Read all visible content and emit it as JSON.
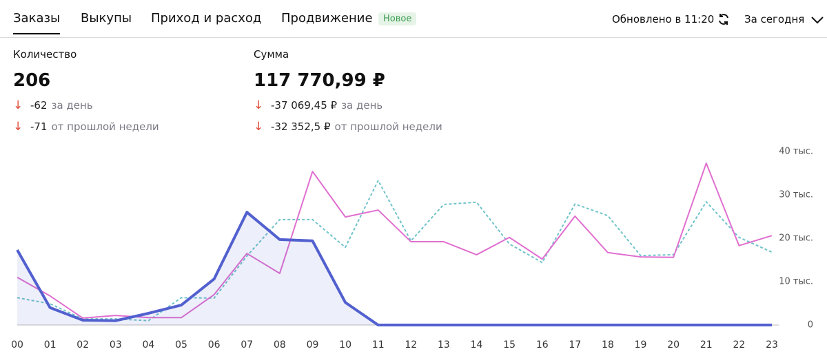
{
  "tabs": [
    "Заказы",
    "Выкупы",
    "Приход и расход",
    "Продвижение"
  ],
  "badge": "Новое",
  "updated": "Обновлено в 11:20",
  "period": "За сегодня",
  "stats": [
    {
      "label": "Количество",
      "value": "206",
      "changes": [
        {
          "value": "-62",
          "text": "за день"
        },
        {
          "value": "-71",
          "text": "от прошлой недели"
        }
      ]
    },
    {
      "label": "Сумма",
      "value": "117 770,99 ₽",
      "changes": [
        {
          "value": "-37 069,45 ₽",
          "text": "за день"
        },
        {
          "value": "-32 352,5 ₽",
          "text": "от прошлой недели"
        }
      ]
    }
  ],
  "chart_data": {
    "type": "line",
    "categories": [
      "00",
      "01",
      "02",
      "03",
      "04",
      "05",
      "06",
      "07",
      "08",
      "09",
      "10",
      "11",
      "12",
      "13",
      "14",
      "15",
      "16",
      "17",
      "18",
      "19",
      "20",
      "21",
      "22",
      "23"
    ],
    "series": [
      {
        "color": "#6fc3c9",
        "dashed": true,
        "values": [
          6300,
          4900,
          1400,
          1400,
          1000,
          6300,
          6200,
          15900,
          24300,
          24300,
          17900,
          33300,
          19400,
          27800,
          28300,
          18700,
          14400,
          27900,
          25200,
          16000,
          16200,
          28400,
          20200,
          16800
        ]
      },
      {
        "color": "#e06fcf",
        "values": [
          11000,
          6700,
          1600,
          2200,
          1700,
          1700,
          7000,
          16500,
          11900,
          35400,
          24900,
          26500,
          19200,
          19200,
          16200,
          20200,
          15200,
          25100,
          16700,
          15700,
          15600,
          37300,
          18300,
          20600
        ]
      },
      {
        "color": "#5260cf",
        "area": true,
        "width": 4,
        "values": [
          17300,
          4000,
          1100,
          1000,
          2700,
          4600,
          10600,
          26000,
          19700,
          19400,
          5200,
          0,
          0,
          0,
          0,
          0,
          0,
          0,
          0,
          0,
          0,
          0,
          0,
          0
        ]
      }
    ],
    "ylim": [
      0,
      40000
    ],
    "yticks": [
      {
        "value": 0,
        "label": "0"
      },
      {
        "value": 10000,
        "label": "10 тыс."
      },
      {
        "value": 20000,
        "label": "20 тыс."
      },
      {
        "value": 30000,
        "label": "30 тыс."
      },
      {
        "value": 40000,
        "label": "40 тыс."
      }
    ]
  }
}
